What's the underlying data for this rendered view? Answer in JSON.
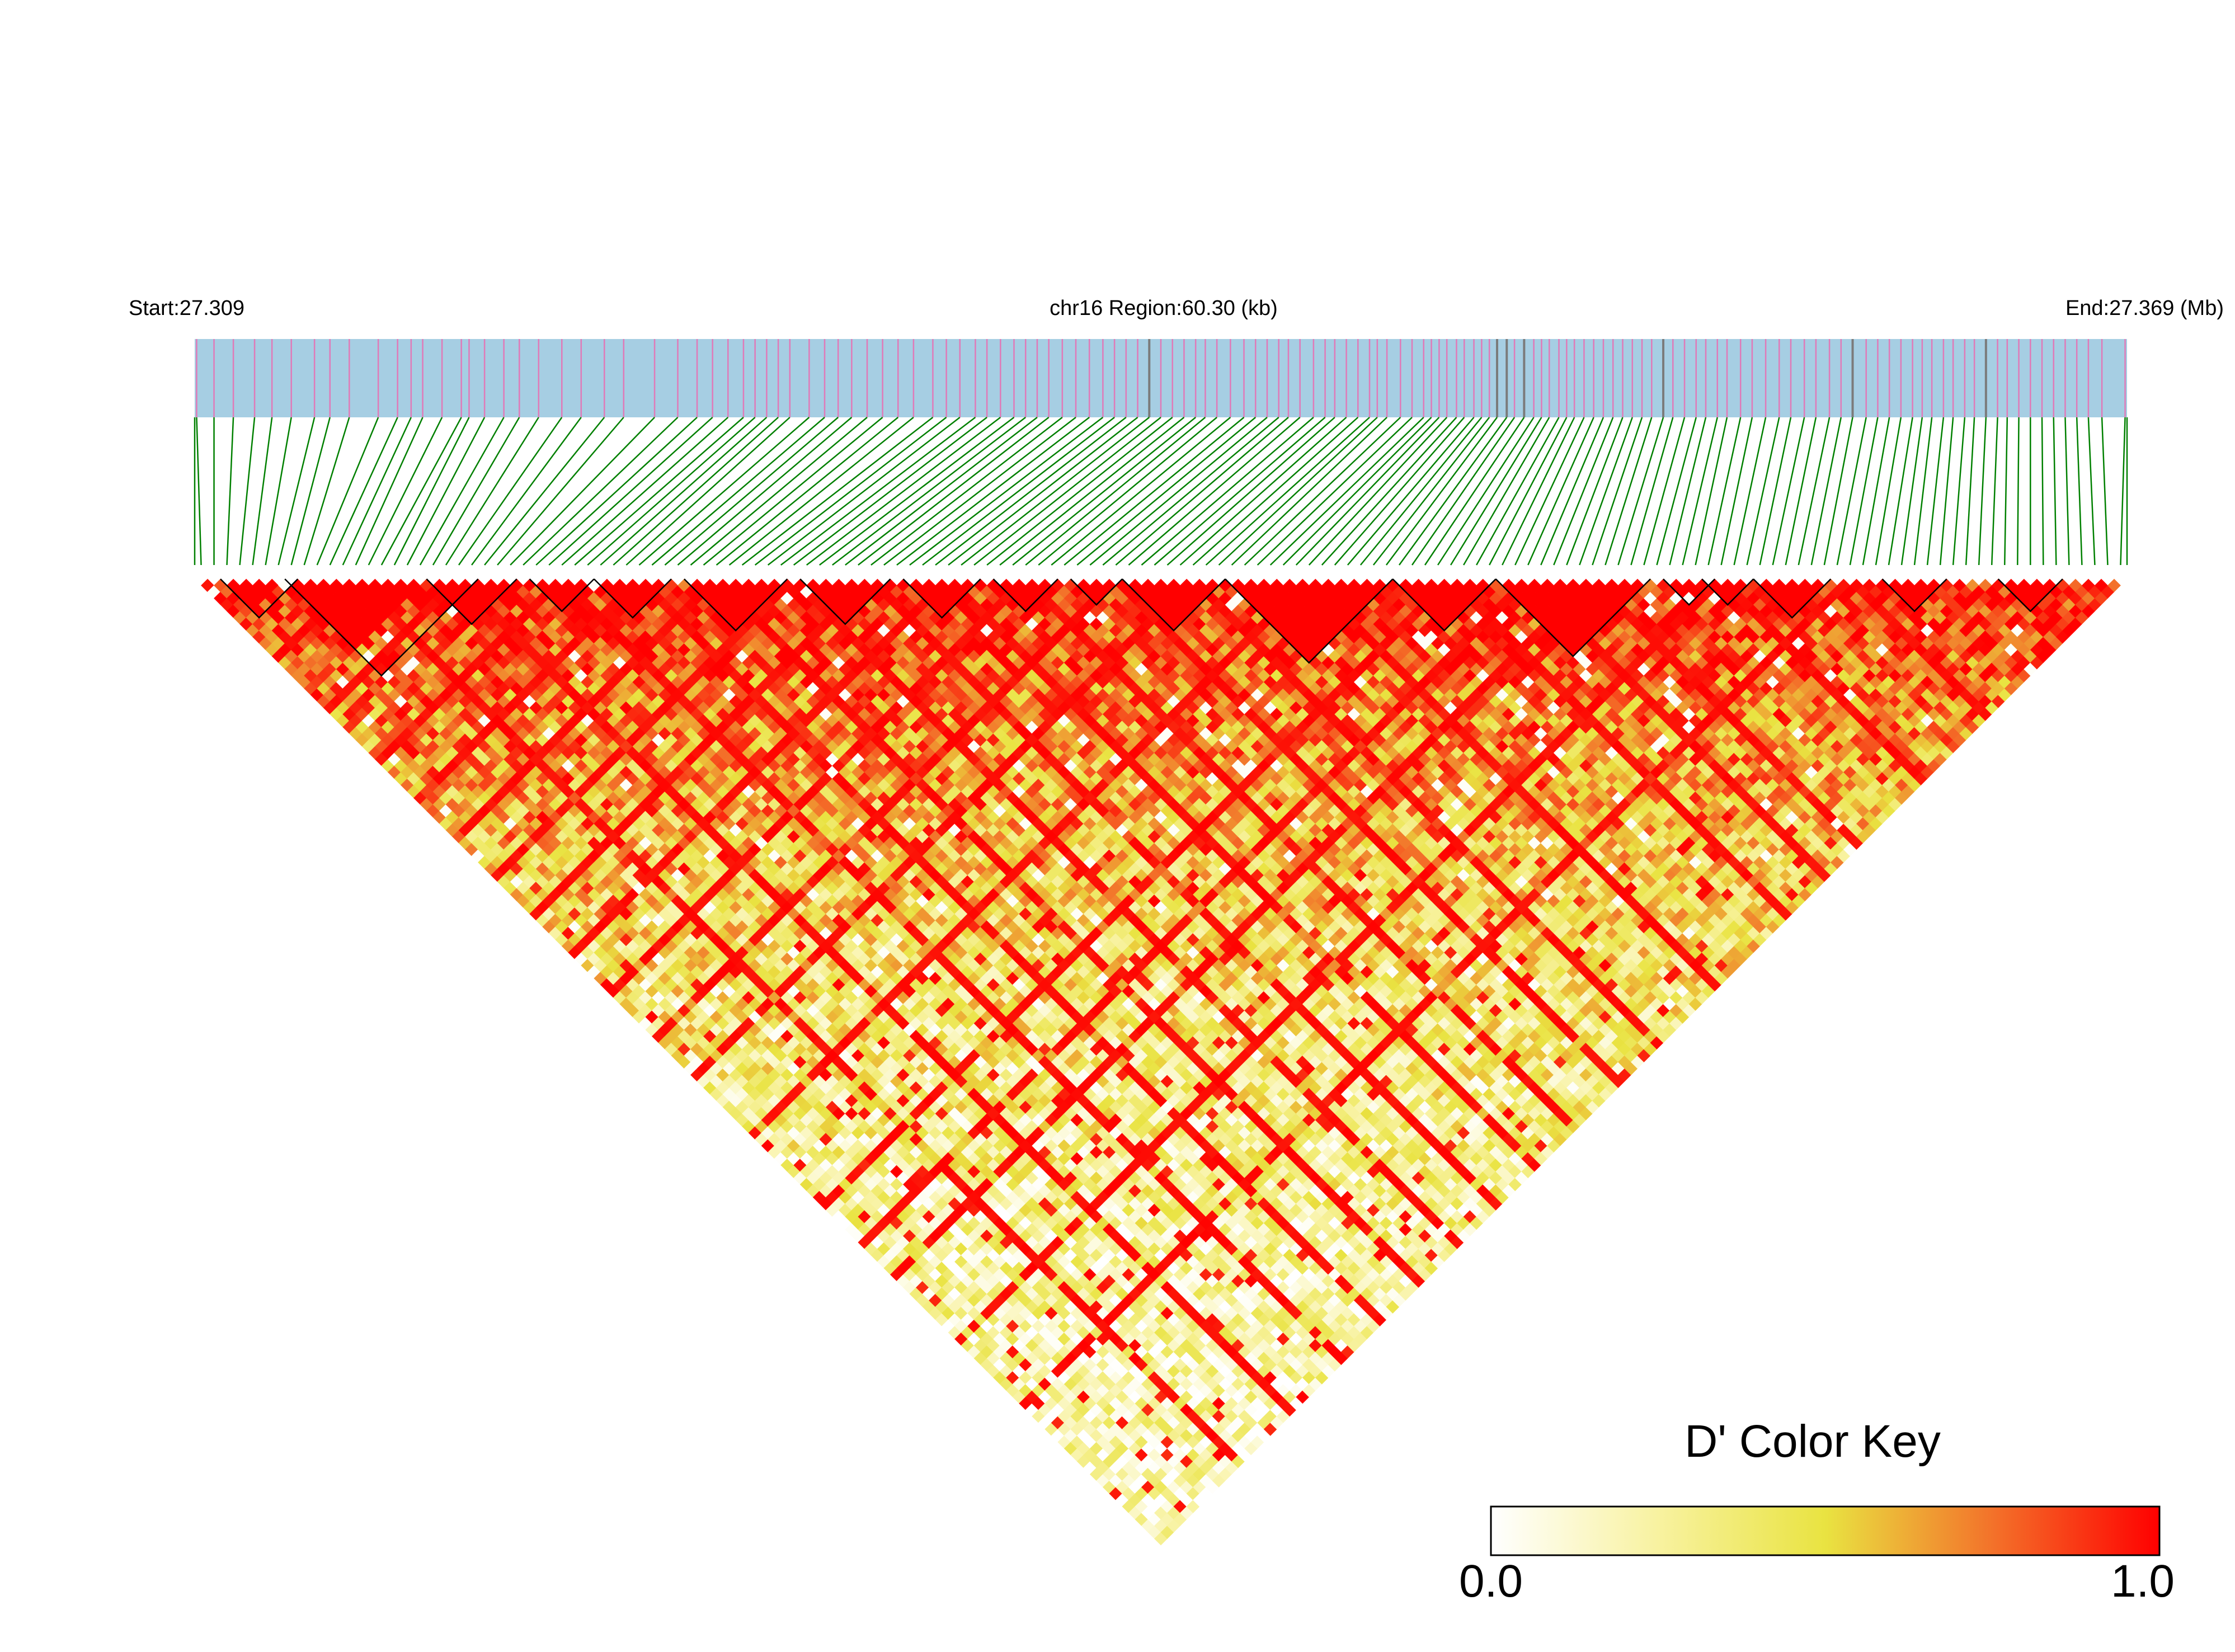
{
  "chart_data": {
    "type": "heatmap",
    "subtype": "LD triangle (LDheatmap)",
    "chromosome": "chr16",
    "labels": {
      "start": "Start:27.309",
      "region": "chr16 Region:60.30 (kb)",
      "end": "End:27.369 (Mb)"
    },
    "color_key": {
      "title": "D' Color Key",
      "min_label": "0.0",
      "max_label": "1.0",
      "range": [
        0.0,
        1.0
      ],
      "stops": [
        "#ffffff",
        "#f4ee6a",
        "#e9e341",
        "#f08a2a",
        "#ff0000"
      ]
    },
    "colors": {
      "track_fill": "#a6cee3",
      "snp_line": "#e07ab8",
      "snp_line_dark": "#7b7b7b",
      "connector": "#008000",
      "block_outline": "#000000"
    },
    "n_snps": 150,
    "snp_positions": [
      0.001,
      0.01,
      0.02,
      0.031,
      0.04,
      0.05,
      0.062,
      0.07,
      0.08,
      0.095,
      0.105,
      0.112,
      0.118,
      0.128,
      0.138,
      0.142,
      0.15,
      0.16,
      0.168,
      0.178,
      0.19,
      0.2,
      0.212,
      0.222,
      0.238,
      0.25,
      0.26,
      0.268,
      0.276,
      0.284,
      0.29,
      0.296,
      0.302,
      0.308,
      0.318,
      0.326,
      0.333,
      0.34,
      0.348,
      0.356,
      0.364,
      0.372,
      0.382,
      0.389,
      0.396,
      0.404,
      0.41,
      0.417,
      0.424,
      0.43,
      0.436,
      0.442,
      0.449,
      0.456,
      0.463,
      0.47,
      0.476,
      0.482,
      0.488,
      0.494,
      0.5,
      0.506,
      0.512,
      0.518,
      0.523,
      0.529,
      0.536,
      0.543,
      0.549,
      0.555,
      0.561,
      0.566,
      0.572,
      0.579,
      0.585,
      0.59,
      0.596,
      0.602,
      0.608,
      0.612,
      0.617,
      0.624,
      0.63,
      0.636,
      0.64,
      0.644,
      0.648,
      0.653,
      0.657,
      0.662,
      0.666,
      0.67,
      0.674,
      0.679,
      0.683,
      0.688,
      0.693,
      0.697,
      0.701,
      0.706,
      0.71,
      0.714,
      0.719,
      0.724,
      0.729,
      0.734,
      0.739,
      0.744,
      0.749,
      0.754,
      0.76,
      0.765,
      0.771,
      0.777,
      0.782,
      0.788,
      0.793,
      0.8,
      0.806,
      0.813,
      0.82,
      0.826,
      0.833,
      0.839,
      0.846,
      0.852,
      0.858,
      0.865,
      0.871,
      0.877,
      0.883,
      0.889,
      0.894,
      0.899,
      0.905,
      0.91,
      0.916,
      0.921,
      0.927,
      0.933,
      0.938,
      0.944,
      0.95,
      0.956,
      0.962,
      0.968,
      0.974,
      0.98,
      0.987,
      0.999
    ],
    "dark_snp_indices": [
      59,
      92,
      93,
      95,
      110,
      126,
      138
    ],
    "blocks": [
      {
        "from": 2,
        "to": 7
      },
      {
        "from": 7,
        "to": 21
      },
      {
        "from": 18,
        "to": 24
      },
      {
        "from": 26,
        "to": 30
      },
      {
        "from": 31,
        "to": 36
      },
      {
        "from": 38,
        "to": 45
      },
      {
        "from": 47,
        "to": 53
      },
      {
        "from": 55,
        "to": 60
      },
      {
        "from": 62,
        "to": 66
      },
      {
        "from": 68,
        "to": 71
      },
      {
        "from": 72,
        "to": 79
      },
      {
        "from": 80,
        "to": 92
      },
      {
        "from": 93,
        "to": 100
      },
      {
        "from": 101,
        "to": 112
      },
      {
        "from": 114,
        "to": 117
      },
      {
        "from": 117,
        "to": 120
      },
      {
        "from": 121,
        "to": 126
      },
      {
        "from": 131,
        "to": 135
      },
      {
        "from": 140,
        "to": 144
      }
    ],
    "dprime_model": {
      "description": "Pairwise D' between SNPs i<j; high near the diagonal and inside blocks, lower far from diagonal, with a few strongly linked SNPs forming red stripes.",
      "diagonal_decay": 0.015,
      "in_block_value": 1.0,
      "stripe_snp_indices": [
        12,
        20,
        28,
        34,
        40,
        46,
        52,
        58,
        64,
        71,
        77,
        86,
        97,
        103,
        108,
        118,
        128
      ],
      "stripe_value": 0.95
    },
    "xlabel": "",
    "ylabel": ""
  }
}
